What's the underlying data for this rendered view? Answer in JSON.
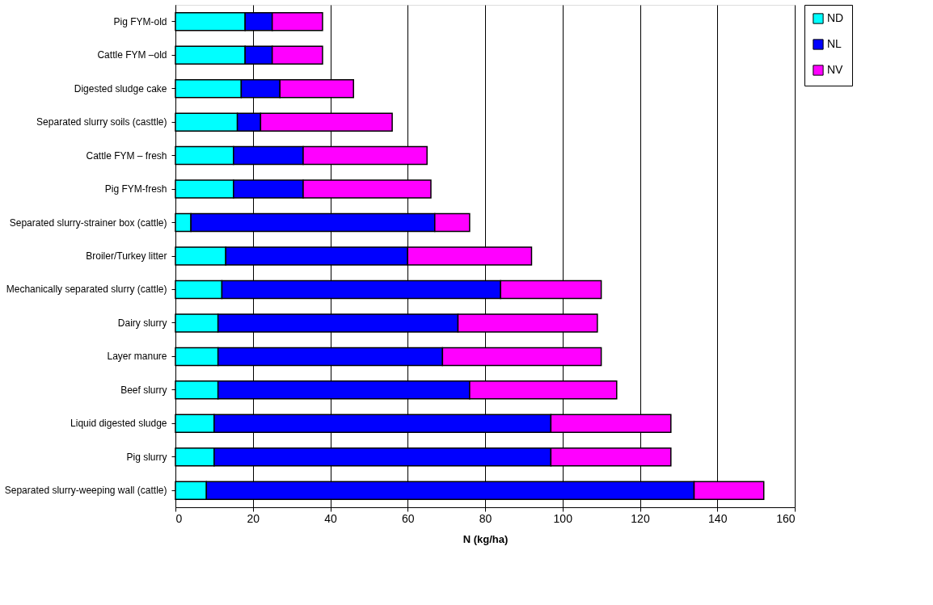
{
  "chart_data": {
    "type": "bar",
    "orientation": "horizontal",
    "stacked": true,
    "xlabel": "N (kg/ha)",
    "categories": [
      "Pig FYM-old",
      "Cattle FYM –old",
      "Digested sludge cake",
      "Separated slurry soils (casttle)",
      "Cattle FYM – fresh",
      "Pig FYM-fresh",
      "Separated slurry-strainer box (cattle)",
      "Broiler/Turkey litter",
      "Mechanically separated slurry (cattle)",
      "Dairy slurry",
      "Layer manure",
      "Beef slurry",
      "Liquid digested sludge",
      "Pig slurry",
      "Separated slurry-weeping wall (cattle)"
    ],
    "series": [
      {
        "name": "ND",
        "color": "#00ffff",
        "values": [
          18,
          18,
          17,
          16,
          15,
          15,
          4,
          13,
          12,
          11,
          11,
          11,
          10,
          10,
          8
        ]
      },
      {
        "name": "NL",
        "color": "#0000ff",
        "values": [
          7,
          7,
          10,
          6,
          18,
          18,
          63,
          47,
          72,
          62,
          58,
          65,
          87,
          87,
          126
        ]
      },
      {
        "name": "NV",
        "color": "#ff00ff",
        "values": [
          13,
          13,
          19,
          34,
          32,
          33,
          9,
          32,
          26,
          36,
          41,
          38,
          31,
          31,
          18
        ]
      }
    ],
    "xlim": [
      0,
      160
    ],
    "xticks": [
      0,
      20,
      40,
      60,
      80,
      100,
      120,
      140,
      160
    ],
    "grid": "x",
    "legend": "right"
  }
}
